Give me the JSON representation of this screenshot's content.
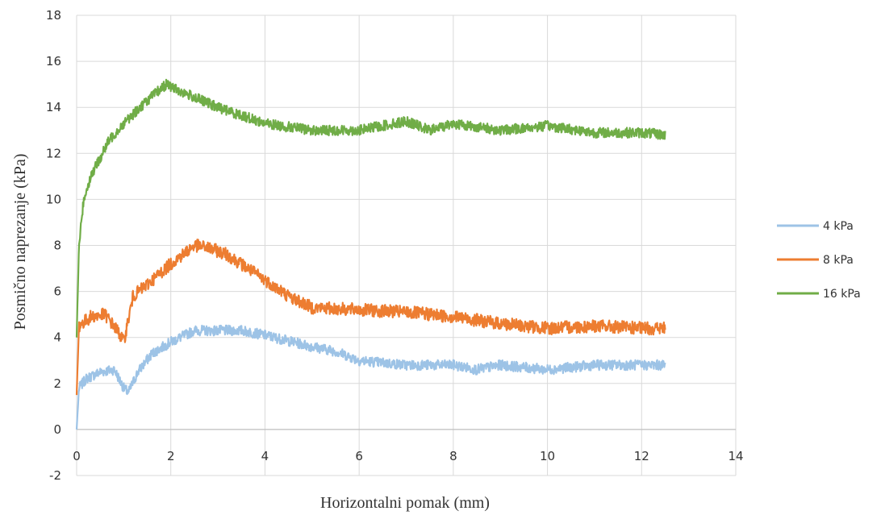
{
  "chart_data": {
    "type": "line",
    "title": "",
    "xlabel": "Horizontalni pomak (mm)",
    "ylabel": "Posmično naprezanje (kPa)",
    "xlim": [
      0,
      14
    ],
    "ylim": [
      -2,
      18
    ],
    "x_ticks": [
      0,
      2,
      4,
      6,
      8,
      10,
      12,
      14
    ],
    "y_ticks": [
      -2,
      0,
      2,
      4,
      6,
      8,
      10,
      12,
      14,
      16,
      18
    ],
    "grid": true,
    "legend_position": "right",
    "series": [
      {
        "name": "4 kPa",
        "color": "#9DC3E6",
        "x": [
          0,
          0.05,
          0.2,
          0.5,
          0.8,
          1.0,
          1.1,
          1.3,
          1.6,
          2.0,
          2.5,
          2.8,
          3.5,
          4.0,
          5.0,
          5.5,
          6.0,
          7.0,
          8.0,
          8.5,
          9.0,
          10.0,
          11.0,
          12.0,
          12.5
        ],
        "y": [
          0,
          1.8,
          2.2,
          2.5,
          2.6,
          1.8,
          1.6,
          2.5,
          3.3,
          3.8,
          4.3,
          4.3,
          4.3,
          4.1,
          3.6,
          3.4,
          3.0,
          2.8,
          2.8,
          2.6,
          2.8,
          2.6,
          2.8,
          2.8,
          2.8
        ]
      },
      {
        "name": "8 kPa",
        "color": "#ED7D31",
        "x": [
          0,
          0.05,
          0.3,
          0.6,
          0.9,
          1.0,
          1.2,
          1.5,
          2.0,
          2.5,
          2.8,
          3.2,
          4.0,
          4.5,
          5.0,
          6.0,
          7.0,
          8.0,
          9.0,
          10.0,
          11.0,
          12.0,
          12.5
        ],
        "y": [
          1.5,
          4.5,
          4.9,
          5.0,
          4.2,
          3.8,
          5.8,
          6.3,
          7.2,
          8.0,
          7.9,
          7.6,
          6.5,
          5.8,
          5.3,
          5.2,
          5.1,
          4.9,
          4.6,
          4.4,
          4.5,
          4.4,
          4.4
        ]
      },
      {
        "name": "16 kPa",
        "color": "#70AD47",
        "x": [
          0,
          0.05,
          0.15,
          0.3,
          0.5,
          0.7,
          1.0,
          1.5,
          1.9,
          2.2,
          3.0,
          4.0,
          5.0,
          6.0,
          7.0,
          7.5,
          8.0,
          9.0,
          10.0,
          11.0,
          12.0,
          12.5
        ],
        "y": [
          4.0,
          8.0,
          10.0,
          11.0,
          11.8,
          12.6,
          13.3,
          14.3,
          15.0,
          14.7,
          14.0,
          13.3,
          13.0,
          13.0,
          13.4,
          13.0,
          13.3,
          13.0,
          13.2,
          12.9,
          12.9,
          12.8
        ]
      }
    ]
  }
}
